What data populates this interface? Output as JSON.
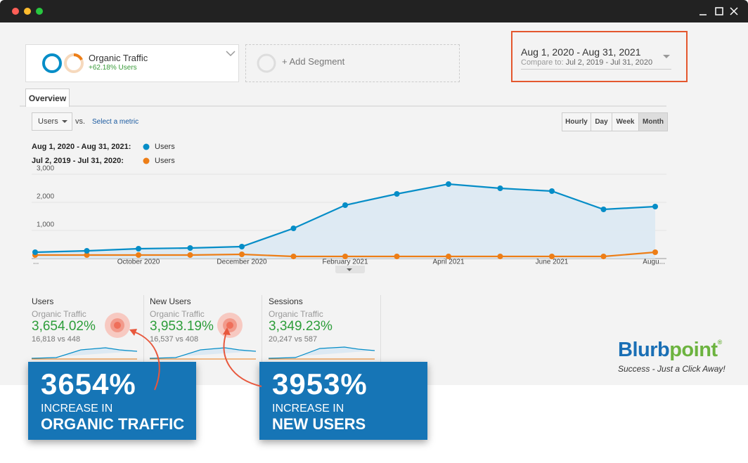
{
  "segments": {
    "active": {
      "name": "Organic Traffic",
      "change": "+62.18% Users"
    },
    "add": "+ Add Segment"
  },
  "date_range": {
    "primary": "Aug 1, 2020 - Aug 31, 2021",
    "compare_label": "Compare to:",
    "compare": "Jul 2, 2019 - Jul 31, 2020"
  },
  "tabs": [
    "Overview"
  ],
  "controls": {
    "metric": "Users",
    "vs": "vs.",
    "select_metric": "Select a metric",
    "granularity": [
      "Hourly",
      "Day",
      "Week",
      "Month"
    ]
  },
  "chart_data": {
    "type": "line",
    "categories": [
      "...",
      null,
      "October 2020",
      null,
      "December 2020",
      null,
      "February 2021",
      null,
      "April 2021",
      null,
      "June 2021",
      null,
      "Augu..."
    ],
    "series": [
      {
        "name": "Users",
        "period": "Aug 1, 2020 - Aug 31, 2021:",
        "color": "#058dc7",
        "area": true,
        "values": [
          225,
          275,
          350,
          375,
          425,
          1075,
          1900,
          2300,
          2650,
          2500,
          2400,
          1750,
          1850
        ]
      },
      {
        "name": "Users",
        "period": "Jul 2, 2019 - Jul 31, 2020:",
        "color": "#ed7e17",
        "area": false,
        "values": [
          125,
          125,
          125,
          125,
          150,
          75,
          75,
          75,
          75,
          75,
          75,
          75,
          225
        ]
      }
    ],
    "ylim": [
      0,
      3000
    ],
    "yticks": [
      {
        "value": 1000,
        "label": "1,000"
      },
      {
        "value": 2000,
        "label": "2,000"
      },
      {
        "value": 3000,
        "label": "3,000"
      }
    ],
    "grid": true
  },
  "scorecards": [
    {
      "metric": "Users",
      "segment": "Organic Traffic",
      "change": "3,654.02%",
      "comparison": "16,818 vs 448"
    },
    {
      "metric": "New Users",
      "segment": "Organic Traffic",
      "change": "3,953.19%",
      "comparison": "16,537 vs 408"
    },
    {
      "metric": "Sessions",
      "segment": "Organic Traffic",
      "change": "3,349.23%",
      "comparison": "20,247 vs 587"
    }
  ],
  "callouts": [
    {
      "value": "3654%",
      "line1": "INCREASE IN",
      "line2": "ORGANIC TRAFFIC"
    },
    {
      "value": "3953%",
      "line1": "INCREASE IN",
      "line2": "NEW USERS"
    }
  ],
  "brand": {
    "name_a": "Blurb",
    "name_b": "point",
    "mark": "®",
    "tagline": "Success - Just a Click Away!"
  }
}
